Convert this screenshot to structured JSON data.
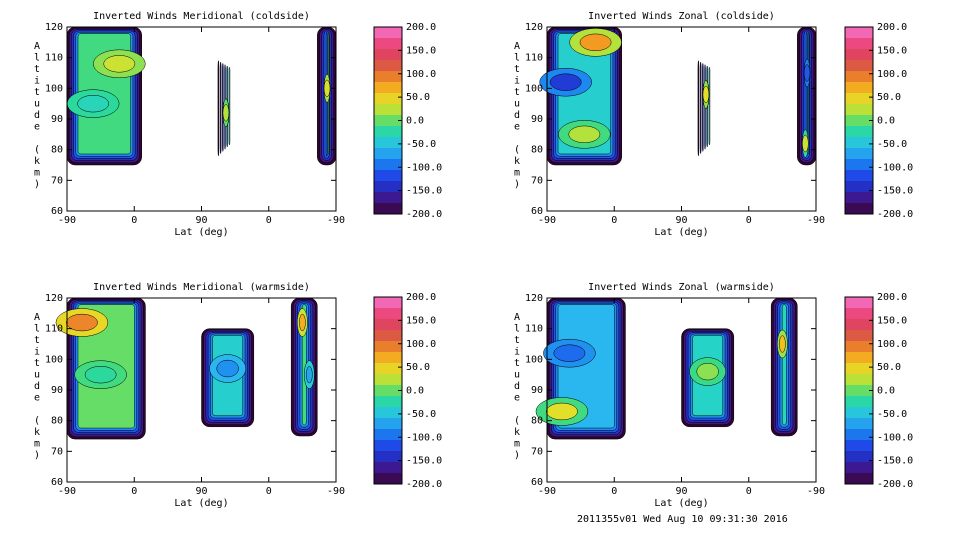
{
  "chart_data": [
    {
      "type": "heatmap",
      "title": "Inverted Winds Meridional (coldside)",
      "xlabel": "Lat (deg)",
      "ylabel": "Altitude (km)",
      "x_ticks": [
        "-90",
        "0",
        "90",
        "0",
        "-90"
      ],
      "y_ticks": [
        "60",
        "70",
        "80",
        "90",
        "100",
        "110",
        "120"
      ],
      "ylim": [
        60,
        120
      ],
      "colorbar_ticks": [
        "200.0",
        "150.0",
        "100.0",
        "50.0",
        "0.0",
        "-50.0",
        "-100.0",
        "-150.0",
        "-200.0"
      ],
      "clim": [
        -200,
        200
      ],
      "patches": [
        {
          "lat_from": -90,
          "lat_to": 10,
          "alt_from": 75,
          "alt_to": 120,
          "value": -10,
          "features": [
            {
              "lat": -55,
              "alt": 95,
              "value": -30
            },
            {
              "lat": -20,
              "alt": 108,
              "value": 30
            }
          ]
        },
        {
          "lat_from": 68,
          "lat_to": 90,
          "alt_from": 78,
          "alt_to": 109,
          "value": -25,
          "features": [
            {
              "lat": 80,
              "alt": 92,
              "value": 20
            }
          ]
        },
        {
          "lat_from": -65,
          "lat_to": -90,
          "alt_from": 75,
          "alt_to": 120,
          "value": 0,
          "features": [
            {
              "lat": -78,
              "alt": 100,
              "value": 35
            }
          ]
        }
      ]
    },
    {
      "type": "heatmap",
      "title": "Inverted Winds Zonal (coldside)",
      "xlabel": "Lat (deg)",
      "ylabel": "Altitude (km)",
      "x_ticks": [
        "-90",
        "0",
        "90",
        "0",
        "-90"
      ],
      "y_ticks": [
        "60",
        "70",
        "80",
        "90",
        "100",
        "110",
        "120"
      ],
      "ylim": [
        60,
        120
      ],
      "colorbar_ticks": [
        "200.0",
        "150.0",
        "100.0",
        "50.0",
        "0.0",
        "-50.0",
        "-100.0",
        "-150.0",
        "-200.0"
      ],
      "clim": [
        -200,
        200
      ],
      "patches": [
        {
          "lat_from": -90,
          "lat_to": 10,
          "alt_from": 75,
          "alt_to": 120,
          "value": -40,
          "features": [
            {
              "lat": -65,
              "alt": 102,
              "value": -130
            },
            {
              "lat": -25,
              "alt": 115,
              "value": 80
            },
            {
              "lat": -40,
              "alt": 85,
              "value": 20
            }
          ]
        },
        {
          "lat_from": 68,
          "lat_to": 90,
          "alt_from": 78,
          "alt_to": 109,
          "value": -20,
          "features": [
            {
              "lat": 80,
              "alt": 98,
              "value": 40
            }
          ]
        },
        {
          "lat_from": -65,
          "lat_to": -90,
          "alt_from": 75,
          "alt_to": 120,
          "value": -70,
          "features": [
            {
              "lat": -78,
              "alt": 105,
              "value": -110
            },
            {
              "lat": -75,
              "alt": 82,
              "value": 30
            }
          ]
        }
      ]
    },
    {
      "type": "heatmap",
      "title": "Inverted Winds Meridional (warmside)",
      "xlabel": "Lat (deg)",
      "ylabel": "Altitude (km)",
      "x_ticks": [
        "-90",
        "0",
        "90",
        "0",
        "-90"
      ],
      "y_ticks": [
        "60",
        "70",
        "80",
        "90",
        "100",
        "110",
        "120"
      ],
      "ylim": [
        60,
        120
      ],
      "colorbar_ticks": [
        "200.0",
        "150.0",
        "100.0",
        "50.0",
        "0.0",
        "-50.0",
        "-100.0",
        "-150.0",
        "-200.0"
      ],
      "clim": [
        -200,
        200
      ],
      "patches": [
        {
          "lat_from": -90,
          "lat_to": 15,
          "alt_from": 74,
          "alt_to": 120,
          "value": 0,
          "features": [
            {
              "lat": -70,
              "alt": 112,
              "value": 90
            },
            {
              "lat": -45,
              "alt": 95,
              "value": -20
            }
          ]
        },
        {
          "lat_from": 50,
          "lat_to": 120,
          "alt_from": 78,
          "alt_to": 110,
          "value": -40,
          "features": [
            {
              "lat": 85,
              "alt": 97,
              "value": -80
            }
          ]
        },
        {
          "lat_from": -30,
          "lat_to": -65,
          "alt_from": 75,
          "alt_to": 120,
          "value": -10,
          "features": [
            {
              "lat": -45,
              "alt": 112,
              "value": 70
            },
            {
              "lat": -55,
              "alt": 95,
              "value": -70
            }
          ]
        }
      ]
    },
    {
      "type": "heatmap",
      "title": "Inverted Winds Zonal (warmside)",
      "xlabel": "Lat (deg)",
      "ylabel": "Altitude (km)",
      "x_ticks": [
        "-90",
        "0",
        "90",
        "0",
        "-90"
      ],
      "y_ticks": [
        "60",
        "70",
        "80",
        "90",
        "100",
        "110",
        "120"
      ],
      "ylim": [
        60,
        120
      ],
      "colorbar_ticks": [
        "200.0",
        "150.0",
        "100.0",
        "50.0",
        "0.0",
        "-50.0",
        "-100.0",
        "-150.0",
        "-200.0"
      ],
      "clim": [
        -200,
        200
      ],
      "patches": [
        {
          "lat_from": -90,
          "lat_to": 15,
          "alt_from": 74,
          "alt_to": 120,
          "value": -60,
          "features": [
            {
              "lat": -60,
              "alt": 102,
              "value": -100
            },
            {
              "lat": -70,
              "alt": 83,
              "value": 40
            }
          ]
        },
        {
          "lat_from": 50,
          "lat_to": 120,
          "alt_from": 78,
          "alt_to": 110,
          "value": -35,
          "features": [
            {
              "lat": 85,
              "alt": 96,
              "value": 10
            }
          ]
        },
        {
          "lat_from": -30,
          "lat_to": -65,
          "alt_from": 75,
          "alt_to": 120,
          "value": -30,
          "features": [
            {
              "lat": -45,
              "alt": 105,
              "value": 60
            }
          ]
        }
      ]
    }
  ],
  "footer": "2011355v01 Wed Aug 10 09:31:30 2016"
}
